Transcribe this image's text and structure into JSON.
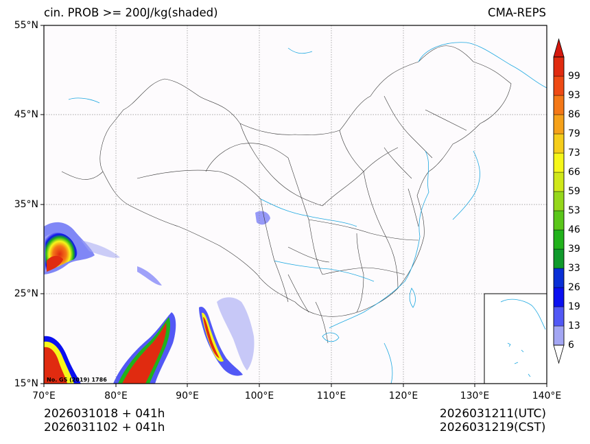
{
  "title": {
    "left": "cin. PROB >= 200J/kg(shaded)",
    "right": "CMA-REPS"
  },
  "map": {
    "lon_range": [
      70,
      140
    ],
    "lat_range": [
      15,
      55
    ],
    "grid_lon": [
      80,
      90,
      100,
      110,
      120,
      130
    ],
    "grid_lat": [
      25,
      35,
      45
    ],
    "y_ticks": [
      "55°N",
      "45°N",
      "35°N",
      "25°N",
      "15°N"
    ],
    "x_ticks": [
      "70°E",
      "80°E",
      "90°E",
      "100°E",
      "110°E",
      "120°E",
      "130°E",
      "140°E"
    ],
    "license_note": "No. GS (2019) 1786",
    "inset": "South China Sea islands"
  },
  "colorbar": {
    "levels": [
      "6",
      "13",
      "19",
      "26",
      "33",
      "39",
      "46",
      "53",
      "59",
      "66",
      "73",
      "79",
      "86",
      "93",
      "99"
    ],
    "colors": [
      "#a3a6f3",
      "#5258f5",
      "#0b10f0",
      "#0a2fd6",
      "#109a2c",
      "#21b21b",
      "#5ac61a",
      "#95d71b",
      "#d0e81a",
      "#f6f71a",
      "#f5cd1b",
      "#f5a11a",
      "#f47817",
      "#ee4a14",
      "#e02b10"
    ],
    "extend_min_color": "#ffffff",
    "extend_max_color": "#d5180e"
  },
  "footer": {
    "init_left": "2026031018  +  041h",
    "init_left_cst": "2026031102  +  041h",
    "valid_utc": "2026031211(UTC)",
    "valid_cst": "2026031219(CST)"
  }
}
